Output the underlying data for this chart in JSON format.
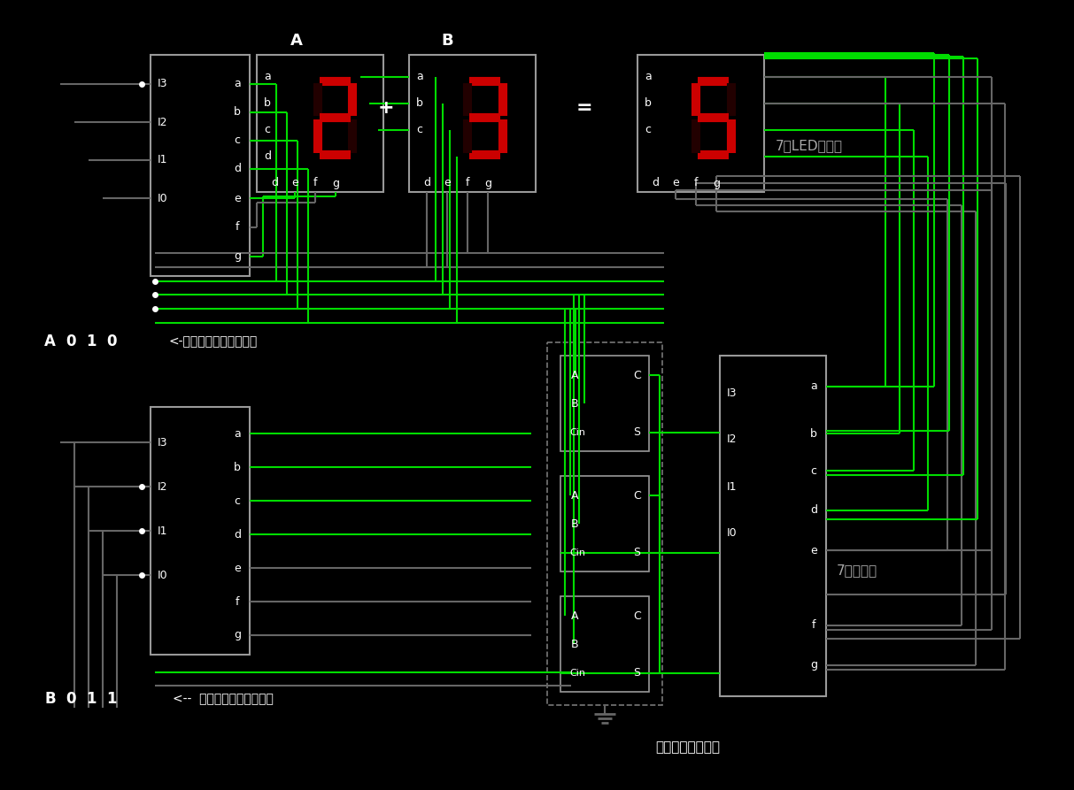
{
  "bg": "#000000",
  "green": "#00dd00",
  "gray": "#666666",
  "white": "#ffffff",
  "red_on": "#cc0000",
  "red_off": "#220000",
  "box_color": "#999999",
  "label_display": "7段LED显示器",
  "label_decoder": "7段译码器",
  "label_adder": "三位二进制加法器",
  "title_A": "A",
  "title_B": "B",
  "plus": "+",
  "equals": "=",
  "digit_A": "2",
  "digit_B": "3",
  "digit_R": "5",
  "A_label": "A",
  "B_label": "B",
  "A_bits": "0  1  0",
  "B_bits": "0  1  1",
  "click_hint_A": "<-单击数字改变开关状态",
  "click_hint_B": "<--  单击数字改变开关状态",
  "seg_segs": {
    "2": [
      1,
      1,
      0,
      1,
      1,
      0,
      1
    ],
    "3": [
      1,
      1,
      1,
      1,
      0,
      0,
      1
    ],
    "5": [
      1,
      0,
      1,
      1,
      0,
      1,
      1
    ]
  }
}
